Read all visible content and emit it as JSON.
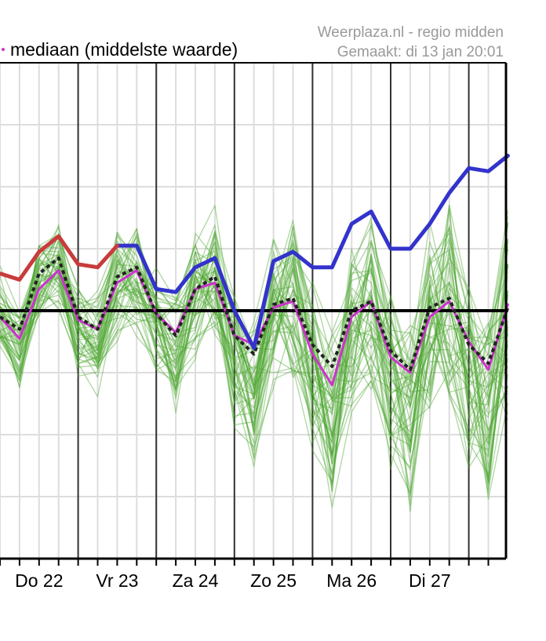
{
  "header": {
    "legend_label": "mediaan (middelste waarde)",
    "source": "Weerplaza.nl - regio midden",
    "created": "Gemaakt: di 13 jan 20:01"
  },
  "colors": {
    "ensemble": "#4aa52e",
    "observed": "#c83c3c",
    "operational": "#3333cc",
    "median": "#cc33cc",
    "mean": "#222222",
    "zero_line": "#000000",
    "grid": "#dddddd",
    "day_line": "#333333"
  },
  "chart_data": {
    "type": "line",
    "x_unit": "6-hour steps",
    "x_ticks": [
      "Do 22",
      "Vr 23",
      "Za 24",
      "Zo 25",
      "Ma 26",
      "Di 27"
    ],
    "x_tick_step_index": [
      2,
      6,
      10,
      14,
      18,
      22
    ],
    "day_boundary_step_index": [
      4,
      8,
      12,
      16,
      20,
      24
    ],
    "x_range": [
      -1,
      25.7
    ],
    "y_range": [
      -4,
      4
    ],
    "zero_line": 0,
    "grid": true,
    "series": [
      {
        "kind": "observed",
        "values": [
          0.6,
          0.5,
          0.95,
          1.2,
          0.75,
          0.7,
          1.05
        ]
      },
      {
        "kind": "operational",
        "values": [
          null,
          null,
          null,
          null,
          null,
          null,
          1.05,
          1.05,
          0.35,
          0.3,
          0.7,
          0.85,
          0,
          -0.6,
          0.8,
          0.95,
          0.7,
          0.7,
          1.4,
          1.6,
          1.0,
          1.0,
          1.4,
          1.9,
          2.3,
          2.25,
          2.5
        ]
      },
      {
        "kind": "median",
        "values": [
          -0.1,
          -0.45,
          0.35,
          0.65,
          -0.15,
          -0.3,
          0.45,
          0.65,
          -0.05,
          -0.35,
          0.35,
          0.45,
          -0.4,
          -0.55,
          0.05,
          0.15,
          -0.7,
          -1.2,
          -0.1,
          0.15,
          -0.75,
          -1.0,
          -0.1,
          0.15,
          -0.5,
          -0.95,
          0.1
        ]
      },
      {
        "kind": "mean",
        "values": [
          -0.1,
          -0.3,
          0.6,
          0.85,
          -0.1,
          -0.3,
          0.55,
          0.7,
          -0.05,
          -0.4,
          0.35,
          0.55,
          -0.4,
          -0.7,
          0.1,
          0.2,
          -0.55,
          -0.9,
          0.0,
          0.15,
          -0.65,
          -0.95,
          0.05,
          0.2,
          -0.55,
          -0.85,
          0.05
        ]
      },
      {
        "kind": "ensemble_mean_shape",
        "values": [
          0.0,
          -0.5,
          0.5,
          0.7,
          -0.2,
          -0.5,
          0.4,
          0.6,
          -0.1,
          -0.6,
          0.3,
          0.5,
          -0.6,
          -1.2,
          0.0,
          0.2,
          -0.9,
          -1.6,
          -0.3,
          0.1,
          -1.0,
          -1.6,
          -0.2,
          0.2,
          -0.9,
          -1.6,
          0.0
        ]
      }
    ]
  }
}
